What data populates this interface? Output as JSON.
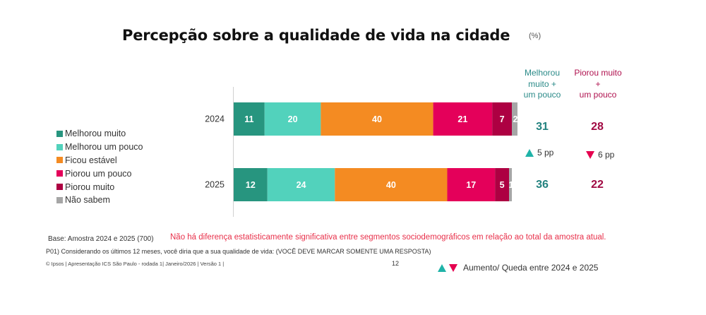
{
  "title": "Percepção sobre a qualidade de vida na cidade",
  "title_unit": "(%)",
  "legend": [
    {
      "label": "Melhorou muito",
      "color": "#27957f"
    },
    {
      "label": "Melhorou um pouco",
      "color": "#52d2bc"
    },
    {
      "label": "Ficou estável",
      "color": "#f48b22"
    },
    {
      "label": "Piorou um pouco",
      "color": "#e4005a"
    },
    {
      "label": "Piorou muito",
      "color": "#ad0042"
    },
    {
      "label": "Não sabem",
      "color": "#a6a6a6"
    }
  ],
  "chart_data": {
    "type": "bar",
    "orientation": "horizontal",
    "stacked": true,
    "title": "Percepção sobre a qualidade de vida na cidade",
    "unit": "%",
    "categories": [
      "2024",
      "2025"
    ],
    "series": [
      {
        "name": "Melhorou muito",
        "color": "#27957f",
        "values": [
          11,
          12
        ]
      },
      {
        "name": "Melhorou um pouco",
        "color": "#52d2bc",
        "values": [
          20,
          24
        ]
      },
      {
        "name": "Ficou estável",
        "color": "#f48b22",
        "values": [
          40,
          40
        ]
      },
      {
        "name": "Piorou um pouco",
        "color": "#e4005a",
        "values": [
          21,
          17
        ]
      },
      {
        "name": "Piorou muito",
        "color": "#ad0042",
        "values": [
          7,
          5
        ]
      },
      {
        "name": "Não sabem",
        "color": "#a6a6a6",
        "values": [
          2,
          1
        ]
      }
    ],
    "xlim": [
      0,
      100
    ],
    "grid": false,
    "legend_position": "left"
  },
  "summary": {
    "positive_header": [
      "Melhorou",
      "muito +",
      "um pouco"
    ],
    "negative_header": [
      "Piorou muito",
      "+",
      "um pouco"
    ],
    "rows": [
      {
        "year": "2024",
        "positive": "31",
        "negative": "28"
      },
      {
        "year": "2025",
        "positive": "36",
        "negative": "22"
      }
    ],
    "delta_positive": "5 pp",
    "delta_negative": "6 pp"
  },
  "notes": {
    "base": "Base: Amostra 2024 e 2025 (700)",
    "significance": "Não há diferença estatisticamente significativa entre segmentos sociodemográficos em relação ao total da amostra atual.",
    "question": "P01) Considerando os últimos 12 meses, você diria que a sua qualidade de vida: (VOCÊ DEVE MARCAR SOMENTE UMA RESPOSTA)",
    "footer": "© Ipsos |  Apresentação ICS São Paulo - rodada 1| Janeiro/2026 | Versão 1 |",
    "page": "12",
    "delta_legend": "Aumento/ Queda entre 2024 e 2025"
  }
}
